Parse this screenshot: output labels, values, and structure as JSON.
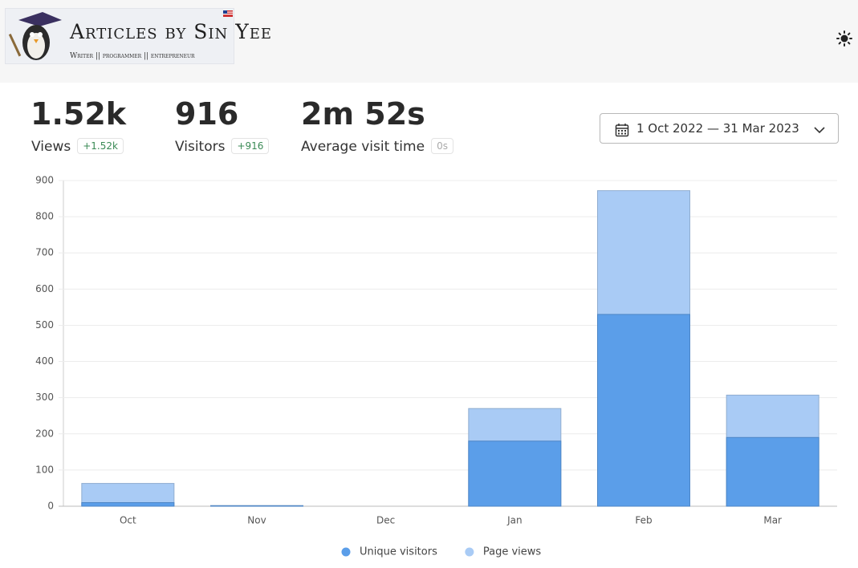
{
  "header": {
    "logo_title": "Articles by Sin Yee",
    "logo_tagline": "Writer || programmer || entrepreneur"
  },
  "stats": [
    {
      "value": "1.52k",
      "label": "Views",
      "change": "+1.52k"
    },
    {
      "value": "916",
      "label": "Visitors",
      "change": "+916"
    },
    {
      "value": "2m 52s",
      "label": "Average visit time",
      "change": "0s"
    }
  ],
  "date_range": "1 Oct 2022 — 31 Mar 2023",
  "chart_data": {
    "type": "bar",
    "stacked": false,
    "categories": [
      "Oct",
      "Nov",
      "Dec",
      "Jan",
      "Feb",
      "Mar"
    ],
    "series": [
      {
        "name": "Unique visitors",
        "color": "#5b9ee9",
        "values": [
          10,
          1,
          0,
          180,
          530,
          190
        ]
      },
      {
        "name": "Page views",
        "color": "#a9cbf5",
        "values": [
          63,
          2,
          0,
          270,
          872,
          307
        ]
      }
    ],
    "ylim": [
      0,
      900
    ],
    "yticks": [
      0,
      100,
      200,
      300,
      400,
      500,
      600,
      700,
      800,
      900
    ],
    "grid": true
  }
}
